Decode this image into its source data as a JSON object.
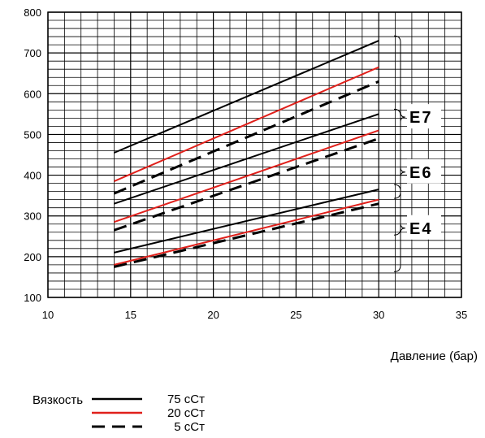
{
  "chart_data": {
    "type": "line",
    "xlabel": "Давление (бар)",
    "ylabel": "",
    "xlim": [
      10,
      35
    ],
    "ylim": [
      100,
      800
    ],
    "x_ticks": [
      "10",
      "15",
      "20",
      "25",
      "30",
      "35"
    ],
    "y_ticks": [
      "100",
      "200",
      "300",
      "400",
      "500",
      "600",
      "700",
      "800"
    ],
    "grid": true,
    "colors": {
      "75": "#000000",
      "20": "#e0201b",
      "5": "#000000"
    },
    "groups": [
      {
        "label": "E7",
        "series": [
          {
            "viscosity": "75",
            "x": [
              14,
              30
            ],
            "y": [
              455,
              730
            ]
          },
          {
            "viscosity": "20",
            "x": [
              14,
              30
            ],
            "y": [
              385,
              665
            ]
          },
          {
            "viscosity": "5",
            "x": [
              14,
              30
            ],
            "y": [
              355,
              630
            ]
          }
        ]
      },
      {
        "label": "E6",
        "series": [
          {
            "viscosity": "75",
            "x": [
              14,
              30
            ],
            "y": [
              330,
              550
            ]
          },
          {
            "viscosity": "20",
            "x": [
              14,
              30
            ],
            "y": [
              285,
              510
            ]
          },
          {
            "viscosity": "5",
            "x": [
              14,
              30
            ],
            "y": [
              265,
              490
            ]
          }
        ]
      },
      {
        "label": "E4",
        "series": [
          {
            "viscosity": "75",
            "x": [
              14,
              30
            ],
            "y": [
              210,
              365
            ]
          },
          {
            "viscosity": "20",
            "x": [
              14,
              30
            ],
            "y": [
              180,
              340
            ]
          },
          {
            "viscosity": "5",
            "x": [
              14,
              30
            ],
            "y": [
              175,
              330
            ]
          }
        ]
      }
    ],
    "legend": {
      "title": "Вязкость",
      "placement": "bottom-left",
      "entries": [
        {
          "viscosity": "75",
          "label": "75  сСт",
          "style": "solid"
        },
        {
          "viscosity": "20",
          "label": "20  сСт",
          "style": "solid"
        },
        {
          "viscosity": "5",
          "label": "5  сСт",
          "style": "dashed"
        }
      ]
    }
  }
}
